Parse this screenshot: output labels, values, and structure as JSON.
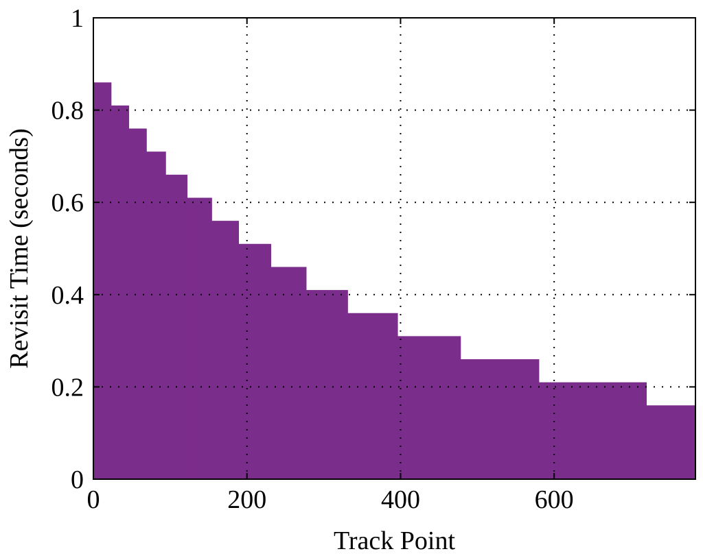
{
  "chart_data": {
    "type": "area",
    "step": true,
    "title": "",
    "xlabel": "Track Point",
    "ylabel": "Revisit Time (seconds)",
    "xlim": [
      0,
      784
    ],
    "ylim": [
      0,
      1
    ],
    "xticks": [
      0,
      200,
      400,
      600
    ],
    "xtick_labels": [
      "0",
      "200",
      "400",
      "600"
    ],
    "yticks": [
      0,
      0.2,
      0.4,
      0.6,
      0.8,
      1
    ],
    "ytick_labels": [
      "0",
      "0.2",
      "0.4",
      "0.6",
      "0.8",
      "1"
    ],
    "grid": "dotted",
    "fill_color": "#7b2d8b",
    "steps": [
      {
        "x_start": 0,
        "x_end": 23,
        "y": 0.86
      },
      {
        "x_start": 23,
        "x_end": 46,
        "y": 0.81
      },
      {
        "x_start": 46,
        "x_end": 69,
        "y": 0.76
      },
      {
        "x_start": 69,
        "x_end": 94,
        "y": 0.71
      },
      {
        "x_start": 94,
        "x_end": 122,
        "y": 0.66
      },
      {
        "x_start": 122,
        "x_end": 154,
        "y": 0.61
      },
      {
        "x_start": 154,
        "x_end": 189,
        "y": 0.56
      },
      {
        "x_start": 189,
        "x_end": 231,
        "y": 0.51
      },
      {
        "x_start": 231,
        "x_end": 277,
        "y": 0.46
      },
      {
        "x_start": 277,
        "x_end": 331,
        "y": 0.41
      },
      {
        "x_start": 331,
        "x_end": 396,
        "y": 0.36
      },
      {
        "x_start": 396,
        "x_end": 478,
        "y": 0.31
      },
      {
        "x_start": 478,
        "x_end": 580,
        "y": 0.26
      },
      {
        "x_start": 580,
        "x_end": 720,
        "y": 0.21
      },
      {
        "x_start": 720,
        "x_end": 784,
        "y": 0.16
      }
    ]
  }
}
